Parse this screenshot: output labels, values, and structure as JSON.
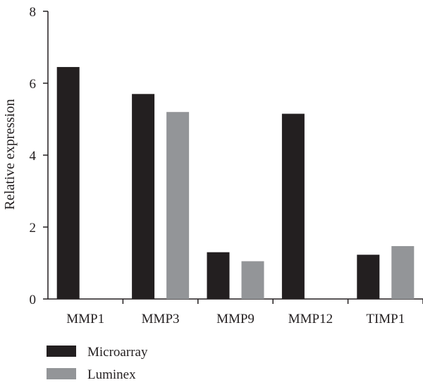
{
  "chart_data": {
    "type": "bar",
    "categories": [
      "MMP1",
      "MMP3",
      "MMP9",
      "MMP12",
      "TIMP1"
    ],
    "series": [
      {
        "name": "Microarray",
        "values": [
          6.45,
          5.7,
          1.3,
          5.15,
          1.23
        ],
        "color": "#231f20"
      },
      {
        "name": "Luminex",
        "values": [
          0,
          5.2,
          1.05,
          0,
          1.47
        ],
        "color": "#939598"
      }
    ],
    "title": "",
    "xlabel": "",
    "ylabel": "Relative expression",
    "ylim": [
      0,
      8
    ],
    "yticks": [
      0,
      2,
      4,
      6,
      8
    ],
    "grid": false,
    "legend_position": "bottom-left"
  }
}
